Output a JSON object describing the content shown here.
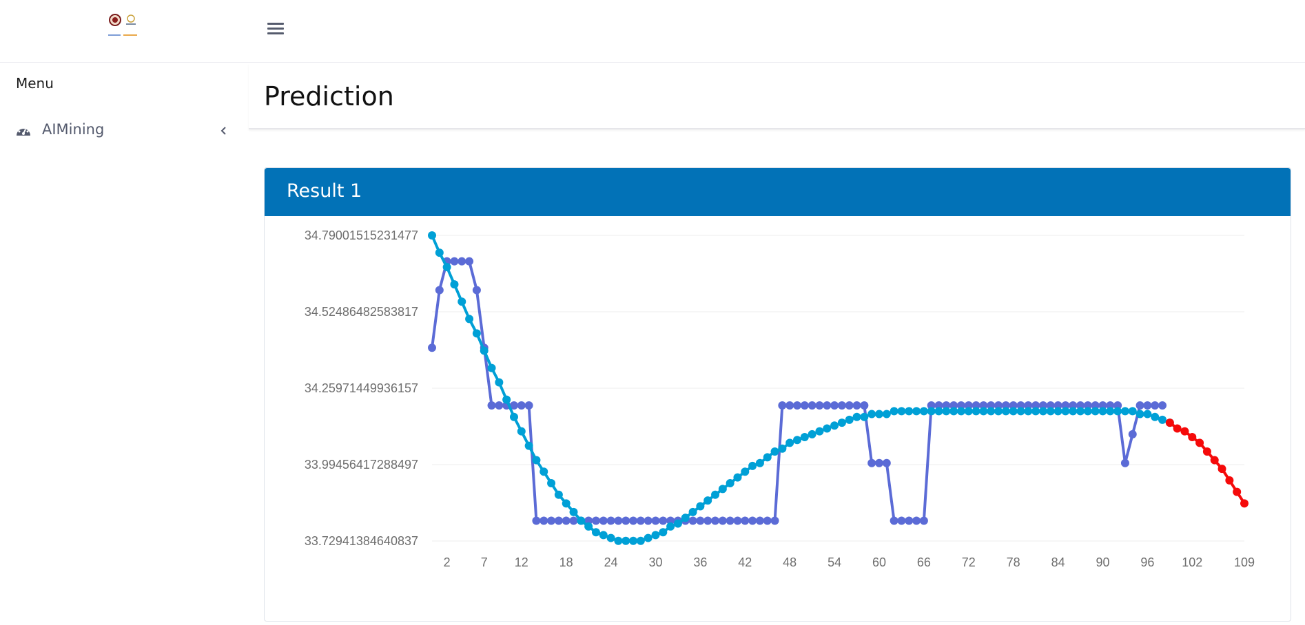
{
  "header": {
    "logo_icon": "institution-logos",
    "menu_icon": "hamburger-menu-icon"
  },
  "sidebar": {
    "menu_title": "Menu",
    "items": [
      {
        "label": "AIMining",
        "icon": "dashboard-gauge-icon",
        "chevron": "chevron-left-icon"
      }
    ]
  },
  "page": {
    "title": "Prediction"
  },
  "card": {
    "title": "Result 1",
    "header_color": "#0272b7"
  },
  "chart_data": {
    "type": "line",
    "y_ticks": [
      "34.79001515231477",
      "34.52486482583817",
      "34.25971449936157",
      "33.99456417288497",
      "33.72941384640837"
    ],
    "ylim": [
      33.72941384640837,
      34.79001515231477
    ],
    "x_ticks": [
      "2",
      "7",
      "12",
      "18",
      "24",
      "30",
      "36",
      "42",
      "48",
      "54",
      "60",
      "66",
      "72",
      "78",
      "84",
      "90",
      "96",
      "102",
      "109"
    ],
    "x_start": 0,
    "series": [
      {
        "color": "#5b6bd6",
        "points": [
          [
            0,
            34.4
          ],
          [
            1,
            34.6
          ],
          [
            2,
            34.7
          ],
          [
            3,
            34.7
          ],
          [
            4,
            34.7
          ],
          [
            5,
            34.7
          ],
          [
            6,
            34.6
          ],
          [
            7,
            34.4
          ],
          [
            8,
            34.2
          ],
          [
            9,
            34.2
          ],
          [
            10,
            34.2
          ],
          [
            11,
            34.2
          ],
          [
            12,
            34.2
          ],
          [
            13,
            34.2
          ],
          [
            14,
            33.8
          ],
          [
            15,
            33.8
          ],
          [
            16,
            33.8
          ],
          [
            17,
            33.8
          ],
          [
            18,
            33.8
          ],
          [
            19,
            33.8
          ],
          [
            20,
            33.8
          ],
          [
            21,
            33.8
          ],
          [
            22,
            33.8
          ],
          [
            23,
            33.8
          ],
          [
            24,
            33.8
          ],
          [
            25,
            33.8
          ],
          [
            26,
            33.8
          ],
          [
            27,
            33.8
          ],
          [
            28,
            33.8
          ],
          [
            29,
            33.8
          ],
          [
            30,
            33.8
          ],
          [
            31,
            33.8
          ],
          [
            32,
            33.8
          ],
          [
            33,
            33.8
          ],
          [
            34,
            33.8
          ],
          [
            35,
            33.8
          ],
          [
            36,
            33.8
          ],
          [
            37,
            33.8
          ],
          [
            38,
            33.8
          ],
          [
            39,
            33.8
          ],
          [
            40,
            33.8
          ],
          [
            41,
            33.8
          ],
          [
            42,
            33.8
          ],
          [
            43,
            33.8
          ],
          [
            44,
            33.8
          ],
          [
            45,
            33.8
          ],
          [
            46,
            33.8
          ],
          [
            47,
            34.2
          ],
          [
            48,
            34.2
          ],
          [
            49,
            34.2
          ],
          [
            50,
            34.2
          ],
          [
            51,
            34.2
          ],
          [
            52,
            34.2
          ],
          [
            53,
            34.2
          ],
          [
            54,
            34.2
          ],
          [
            55,
            34.2
          ],
          [
            56,
            34.2
          ],
          [
            57,
            34.2
          ],
          [
            58,
            34.2
          ],
          [
            59,
            34.0
          ],
          [
            60,
            34.0
          ],
          [
            61,
            34.0
          ],
          [
            62,
            33.8
          ],
          [
            63,
            33.8
          ],
          [
            64,
            33.8
          ],
          [
            65,
            33.8
          ],
          [
            66,
            33.8
          ],
          [
            67,
            34.2
          ],
          [
            68,
            34.2
          ],
          [
            69,
            34.2
          ],
          [
            70,
            34.2
          ],
          [
            71,
            34.2
          ],
          [
            72,
            34.2
          ],
          [
            73,
            34.2
          ],
          [
            74,
            34.2
          ],
          [
            75,
            34.2
          ],
          [
            76,
            34.2
          ],
          [
            77,
            34.2
          ],
          [
            78,
            34.2
          ],
          [
            79,
            34.2
          ],
          [
            80,
            34.2
          ],
          [
            81,
            34.2
          ],
          [
            82,
            34.2
          ],
          [
            83,
            34.2
          ],
          [
            84,
            34.2
          ],
          [
            85,
            34.2
          ],
          [
            86,
            34.2
          ],
          [
            87,
            34.2
          ],
          [
            88,
            34.2
          ],
          [
            89,
            34.2
          ],
          [
            90,
            34.2
          ],
          [
            91,
            34.2
          ],
          [
            92,
            34.2
          ],
          [
            93,
            34.0
          ],
          [
            94,
            34.1
          ],
          [
            95,
            34.2
          ],
          [
            96,
            34.2
          ],
          [
            97,
            34.2
          ],
          [
            98,
            34.2
          ]
        ]
      },
      {
        "color": "#00a0d6",
        "points": [
          [
            0,
            34.79
          ],
          [
            1,
            34.73
          ],
          [
            2,
            34.68
          ],
          [
            3,
            34.62
          ],
          [
            4,
            34.56
          ],
          [
            5,
            34.5
          ],
          [
            6,
            34.45
          ],
          [
            7,
            34.39
          ],
          [
            8,
            34.33
          ],
          [
            9,
            34.28
          ],
          [
            10,
            34.22
          ],
          [
            11,
            34.16
          ],
          [
            12,
            34.11
          ],
          [
            13,
            34.06
          ],
          [
            14,
            34.01
          ],
          [
            15,
            33.97
          ],
          [
            16,
            33.93
          ],
          [
            17,
            33.89
          ],
          [
            18,
            33.86
          ],
          [
            19,
            33.83
          ],
          [
            20,
            33.8
          ],
          [
            21,
            33.78
          ],
          [
            22,
            33.76
          ],
          [
            23,
            33.75
          ],
          [
            24,
            33.74
          ],
          [
            25,
            33.73
          ],
          [
            26,
            33.73
          ],
          [
            27,
            33.73
          ],
          [
            28,
            33.73
          ],
          [
            29,
            33.74
          ],
          [
            30,
            33.75
          ],
          [
            31,
            33.76
          ],
          [
            32,
            33.78
          ],
          [
            33,
            33.79
          ],
          [
            34,
            33.81
          ],
          [
            35,
            33.83
          ],
          [
            36,
            33.85
          ],
          [
            37,
            33.87
          ],
          [
            38,
            33.89
          ],
          [
            39,
            33.91
          ],
          [
            40,
            33.93
          ],
          [
            41,
            33.95
          ],
          [
            42,
            33.97
          ],
          [
            43,
            33.99
          ],
          [
            44,
            34.0
          ],
          [
            45,
            34.02
          ],
          [
            46,
            34.04
          ],
          [
            47,
            34.05
          ],
          [
            48,
            34.07
          ],
          [
            49,
            34.08
          ],
          [
            50,
            34.09
          ],
          [
            51,
            34.1
          ],
          [
            52,
            34.11
          ],
          [
            53,
            34.12
          ],
          [
            54,
            34.13
          ],
          [
            55,
            34.14
          ],
          [
            56,
            34.15
          ],
          [
            57,
            34.16
          ],
          [
            58,
            34.16
          ],
          [
            59,
            34.17
          ],
          [
            60,
            34.17
          ],
          [
            61,
            34.17
          ],
          [
            62,
            34.18
          ],
          [
            63,
            34.18
          ],
          [
            64,
            34.18
          ],
          [
            65,
            34.18
          ],
          [
            66,
            34.18
          ],
          [
            67,
            34.18
          ],
          [
            68,
            34.18
          ],
          [
            69,
            34.18
          ],
          [
            70,
            34.18
          ],
          [
            71,
            34.18
          ],
          [
            72,
            34.18
          ],
          [
            73,
            34.18
          ],
          [
            74,
            34.18
          ],
          [
            75,
            34.18
          ],
          [
            76,
            34.18
          ],
          [
            77,
            34.18
          ],
          [
            78,
            34.18
          ],
          [
            79,
            34.18
          ],
          [
            80,
            34.18
          ],
          [
            81,
            34.18
          ],
          [
            82,
            34.18
          ],
          [
            83,
            34.18
          ],
          [
            84,
            34.18
          ],
          [
            85,
            34.18
          ],
          [
            86,
            34.18
          ],
          [
            87,
            34.18
          ],
          [
            88,
            34.18
          ],
          [
            89,
            34.18
          ],
          [
            90,
            34.18
          ],
          [
            91,
            34.18
          ],
          [
            92,
            34.18
          ],
          [
            93,
            34.18
          ],
          [
            94,
            34.18
          ],
          [
            95,
            34.17
          ],
          [
            96,
            34.17
          ],
          [
            97,
            34.16
          ],
          [
            98,
            34.15
          ],
          [
            99,
            34.14
          ]
        ]
      },
      {
        "color": "#f50a0a",
        "points": [
          [
            99,
            34.14
          ],
          [
            100,
            34.12
          ],
          [
            101,
            34.11
          ],
          [
            102,
            34.09
          ],
          [
            103,
            34.07
          ],
          [
            104,
            34.04
          ],
          [
            105,
            34.01
          ],
          [
            106,
            33.98
          ],
          [
            107,
            33.94
          ],
          [
            108,
            33.9
          ],
          [
            109,
            33.86
          ]
        ]
      }
    ],
    "grid": true
  }
}
